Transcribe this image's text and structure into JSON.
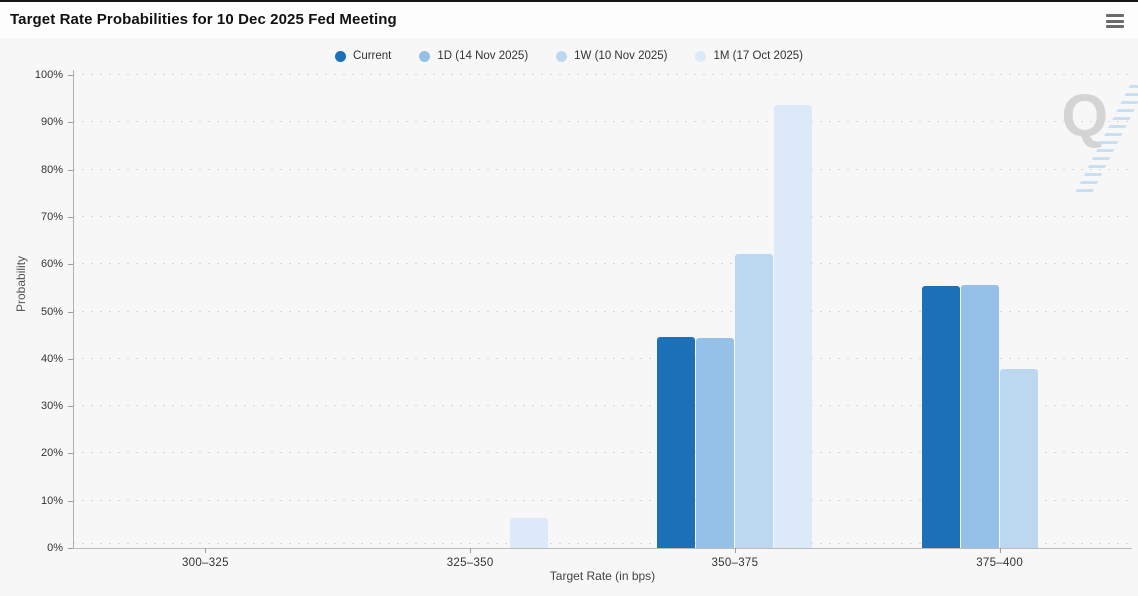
{
  "header": {
    "menu_icon": "hamburger-icon"
  },
  "chart_data": {
    "type": "bar",
    "title": "Target Rate Probabilities for 10 Dec 2025 Fed Meeting",
    "xlabel": "Target Rate (in bps)",
    "ylabel": "Probability",
    "categories": [
      "300–325",
      "325–350",
      "350–375",
      "375–400"
    ],
    "series": [
      {
        "name": "Current",
        "color": "#1c70b8",
        "values": [
          0,
          0,
          44.7,
          55.3
        ]
      },
      {
        "name": "1D (14 Nov 2025)",
        "color": "#95c1e9",
        "values": [
          0,
          0,
          44.4,
          55.6
        ]
      },
      {
        "name": "1W (10 Nov 2025)",
        "color": "#bcd8f0",
        "values": [
          0,
          0,
          62.2,
          37.8
        ]
      },
      {
        "name": "1M (17 Oct 2025)",
        "color": "#dbe9f8",
        "values": [
          0,
          6.3,
          93.7,
          0
        ]
      }
    ],
    "ylim": [
      0,
      100
    ],
    "ytick_step": 10,
    "ytick_labels": [
      "0%",
      "10%",
      "20%",
      "30%",
      "40%",
      "50%",
      "60%",
      "70%",
      "80%",
      "90%",
      "100%"
    ],
    "grid": "horizontal-dotted",
    "legend_position": "top-center"
  },
  "watermark": {
    "letter": "Q"
  }
}
